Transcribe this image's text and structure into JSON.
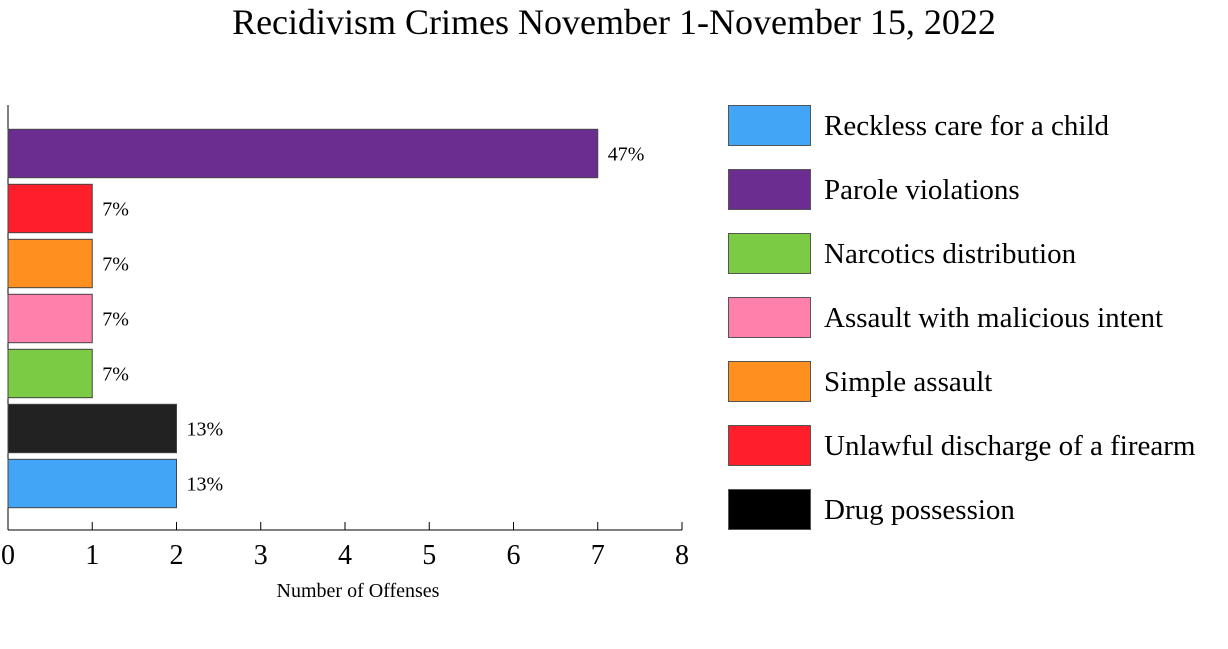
{
  "chart_data": {
    "type": "bar",
    "orientation": "horizontal",
    "title": "Recidivism Crimes November 1-November 15, 2022",
    "xlabel": "Number of Offenses",
    "ylabel": "",
    "xlim": [
      0,
      8
    ],
    "x_ticks": [
      "0",
      "1",
      "2",
      "3",
      "4",
      "5",
      "6",
      "7",
      "8"
    ],
    "grid": false,
    "legend_position": "right",
    "bars": [
      {
        "value": 7,
        "label": "47%",
        "color": "#6B2D90"
      },
      {
        "value": 1,
        "label": "7%",
        "color": "#FF1F2A"
      },
      {
        "value": 1,
        "label": "7%",
        "color": "#FF9020"
      },
      {
        "value": 1,
        "label": "7%",
        "color": "#FF80AA"
      },
      {
        "value": 1,
        "label": "7%",
        "color": "#7CCB45"
      },
      {
        "value": 2,
        "label": "13%",
        "color": "#222222"
      },
      {
        "value": 2,
        "label": "13%",
        "color": "#42A5F5"
      }
    ],
    "legend": [
      {
        "name": "Reckless care for a child",
        "color": "#42A5F5"
      },
      {
        "name": "Parole violations",
        "color": "#6B2D90"
      },
      {
        "name": "Narcotics distribution",
        "color": "#7CCB45"
      },
      {
        "name": "Assault with malicious intent",
        "color": "#FF80AA"
      },
      {
        "name": "Simple assault",
        "color": "#FF9020"
      },
      {
        "name": "Unlawful discharge of a firearm",
        "color": "#FF1F2A"
      },
      {
        "name": "Drug possession",
        "color": "#000000"
      }
    ]
  }
}
